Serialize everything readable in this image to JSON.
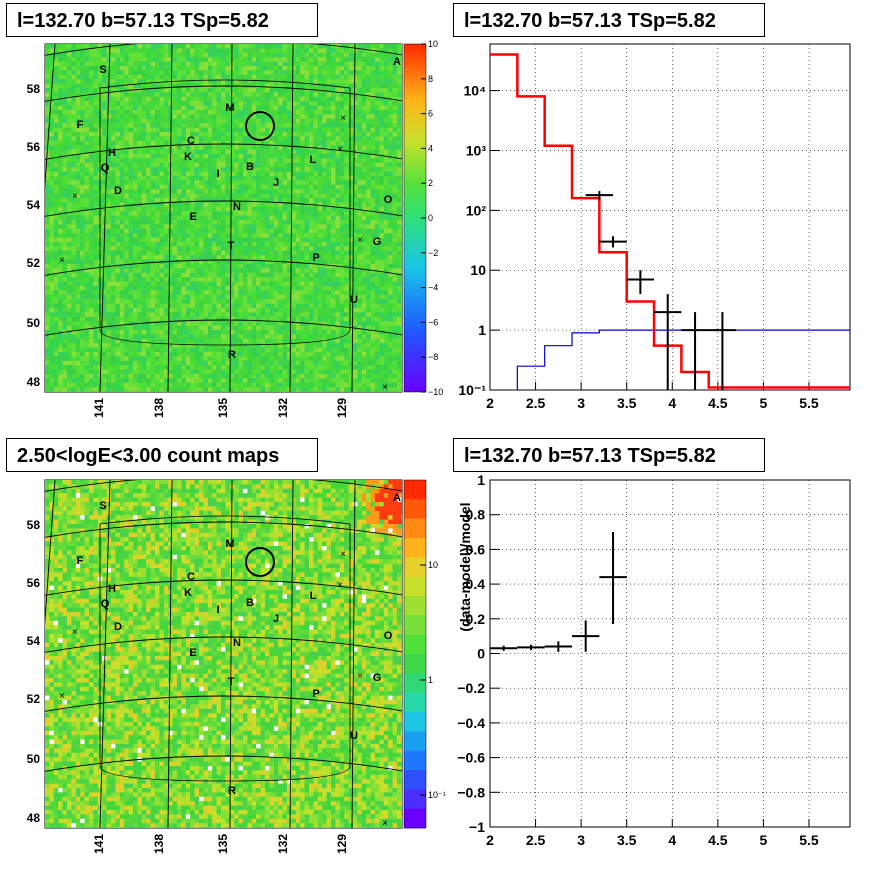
{
  "colors": {
    "fit_line": "#ff0000",
    "background_line": "#0000cc",
    "data_marker": "#000000",
    "map_base": "#3ad83a"
  },
  "panels": {
    "tl": {
      "title": "l=132.70 b=57.13 TSp=5.82"
    },
    "tr": {
      "title": "l=132.70 b=57.13 TSp=5.82"
    },
    "bl": {
      "title": "2.50<logE<3.00 count maps"
    },
    "br": {
      "title": "l=132.70 b=57.13 TSp=5.82"
    }
  },
  "map_labels": {
    "lat_ticks": [
      "58",
      "56",
      "54",
      "52",
      "50",
      "48"
    ],
    "lon_ticks": [
      "141",
      "138",
      "135",
      "132",
      "129"
    ],
    "source_letters": [
      "A",
      "B",
      "C",
      "D",
      "E",
      "F",
      "G",
      "H",
      "I",
      "J",
      "K",
      "L",
      "M",
      "N",
      "O",
      "P",
      "Q",
      "R",
      "S",
      "T",
      "U"
    ],
    "top_colorbar_ticks": [
      "10",
      "8",
      "6",
      "4",
      "2",
      "0",
      "−2",
      "−4",
      "−6",
      "−8",
      "−10"
    ],
    "bottom_colorbar_ticks": [
      "10",
      "1",
      "10⁻¹"
    ]
  },
  "chart_data": [
    {
      "type": "heatmap",
      "title": "l=132.70 b=57.13 TSp=5.82",
      "colorbar_range": [
        -10,
        10
      ],
      "colorbar_ticks": [
        10,
        8,
        6,
        4,
        2,
        0,
        -2,
        -4,
        -6,
        -8,
        -10
      ],
      "y_ticks": [
        58,
        56,
        54,
        52,
        50,
        48
      ],
      "x_ticks": [
        141,
        138,
        135,
        132,
        129
      ]
    },
    {
      "type": "line",
      "title": "l=132.70 b=57.13 TSp=5.82",
      "x_ticks": [
        "2",
        "2.5",
        "3",
        "3.5",
        "4",
        "4.5",
        "5",
        "5.5"
      ],
      "y_ticks": [
        "10⁻¹",
        "1",
        "10",
        "10²",
        "10³",
        "10⁴"
      ],
      "xlim": [
        2,
        5.95
      ],
      "ylim": [
        0.1,
        60000
      ],
      "log_y": true,
      "grid": true,
      "series": [
        {
          "values": [
            [
              2.0,
              2.3,
              40000
            ],
            [
              2.3,
              2.6,
              8000
            ],
            [
              2.6,
              2.9,
              1200
            ],
            [
              2.9,
              3.2,
              160
            ],
            [
              3.2,
              3.5,
              20
            ],
            [
              3.5,
              3.8,
              3
            ],
            [
              3.8,
              4.1,
              0.55
            ],
            [
              4.1,
              4.4,
              0.2
            ],
            [
              4.4,
              5.95,
              0.11
            ]
          ]
        },
        {
          "values": [
            [
              2.3,
              2.6,
              0.25
            ],
            [
              2.6,
              2.9,
              0.55
            ],
            [
              2.9,
              3.2,
              0.9
            ],
            [
              3.2,
              5.95,
              1.0
            ]
          ]
        },
        {
          "points": [
            {
              "x": 3.2,
              "xerr": 0.15,
              "y": 180,
              "ylo": 150,
              "yhi": 210
            },
            {
              "x": 3.35,
              "xerr": 0.15,
              "y": 30,
              "ylo": 24,
              "yhi": 37
            },
            {
              "x": 3.65,
              "xerr": 0.15,
              "y": 7,
              "ylo": 4,
              "yhi": 10
            },
            {
              "x": 3.95,
              "xerr": 0.15,
              "y": 2,
              "ylo": 0.1,
              "yhi": 4
            },
            {
              "x": 4.25,
              "xerr": 0.15,
              "y": 1,
              "ylo": 0.1,
              "yhi": 2
            },
            {
              "x": 4.55,
              "xerr": 0.15,
              "y": 1,
              "ylo": 0.1,
              "yhi": 2
            }
          ]
        }
      ]
    },
    {
      "type": "heatmap",
      "title": "2.50<logE<3.00 count maps",
      "log_colorbar": true,
      "colorbar_ticks": [
        "10",
        "1",
        "10⁻¹"
      ],
      "y_ticks": [
        58,
        56,
        54,
        52,
        50,
        48
      ],
      "x_ticks": [
        141,
        138,
        135,
        132,
        129
      ]
    },
    {
      "type": "scatter",
      "title": "l=132.70 b=57.13 TSp=5.82",
      "ylabel": "(data-model)/model",
      "xlim": [
        2,
        5.95
      ],
      "ylim": [
        -1,
        1
      ],
      "x_ticks": [
        "2",
        "2.5",
        "3",
        "3.5",
        "4",
        "4.5",
        "5",
        "5.5"
      ],
      "y_ticks": [
        "1",
        "0.8",
        "0.6",
        "0.4",
        "0.2",
        "0",
        "−0.2",
        "−0.4",
        "−0.6",
        "−0.8",
        "−1"
      ],
      "grid": true,
      "points": [
        {
          "x": 2.15,
          "xerr": 0.15,
          "y": 0.03,
          "ylo": 0.015,
          "yhi": 0.045
        },
        {
          "x": 2.45,
          "xerr": 0.15,
          "y": 0.035,
          "ylo": 0.02,
          "yhi": 0.05
        },
        {
          "x": 2.75,
          "xerr": 0.15,
          "y": 0.04,
          "ylo": 0.01,
          "yhi": 0.07
        },
        {
          "x": 3.05,
          "xerr": 0.15,
          "y": 0.1,
          "ylo": 0.01,
          "yhi": 0.19
        },
        {
          "x": 3.35,
          "xerr": 0.15,
          "y": 0.44,
          "ylo": 0.17,
          "yhi": 0.7
        }
      ]
    }
  ]
}
